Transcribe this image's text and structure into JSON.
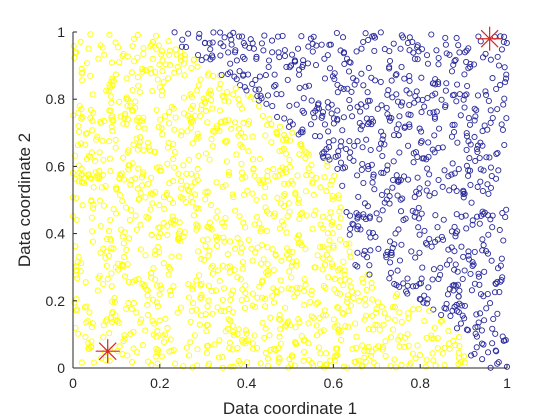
{
  "chart_data": {
    "type": "scatter",
    "title": "",
    "xlabel": "Data coordinate 1",
    "ylabel": "Data coordinate 2",
    "xlim": [
      0,
      1
    ],
    "ylim": [
      0,
      1
    ],
    "x_ticks": [
      0,
      0.2,
      0.4,
      0.6,
      0.8,
      1
    ],
    "y_ticks": [
      0,
      0.2,
      0.4,
      0.6,
      0.8,
      1
    ],
    "x_tick_labels": [
      "0",
      "0.2",
      "0.4",
      "0.6",
      "0.8",
      "1"
    ],
    "y_tick_labels": [
      "0",
      "0.2",
      "0.4",
      "0.6",
      "0.8",
      "1"
    ],
    "grid": false,
    "series": [
      {
        "color": "#ffff00",
        "marker": "circle",
        "point_count": 1100,
        "region": "lower-left of boundary"
      },
      {
        "color": "#2b2b9c",
        "marker": "circle",
        "point_count": 900,
        "region": "upper-right of boundary"
      }
    ],
    "class_boundary": {
      "x": [
        0.2,
        0.42,
        0.6,
        0.65,
        0.75,
        0.88,
        0.92
      ],
      "y": [
        1.0,
        0.8,
        0.6,
        0.3,
        0.23,
        0.13,
        0.0
      ]
    },
    "markers": [
      {
        "name": "reference-point-1",
        "x": 0.08,
        "y": 0.05,
        "symbol": "asterisk",
        "color": "#d62728"
      },
      {
        "name": "reference-point-2",
        "x": 0.96,
        "y": 0.98,
        "symbol": "asterisk",
        "color": "#d62728"
      }
    ]
  }
}
